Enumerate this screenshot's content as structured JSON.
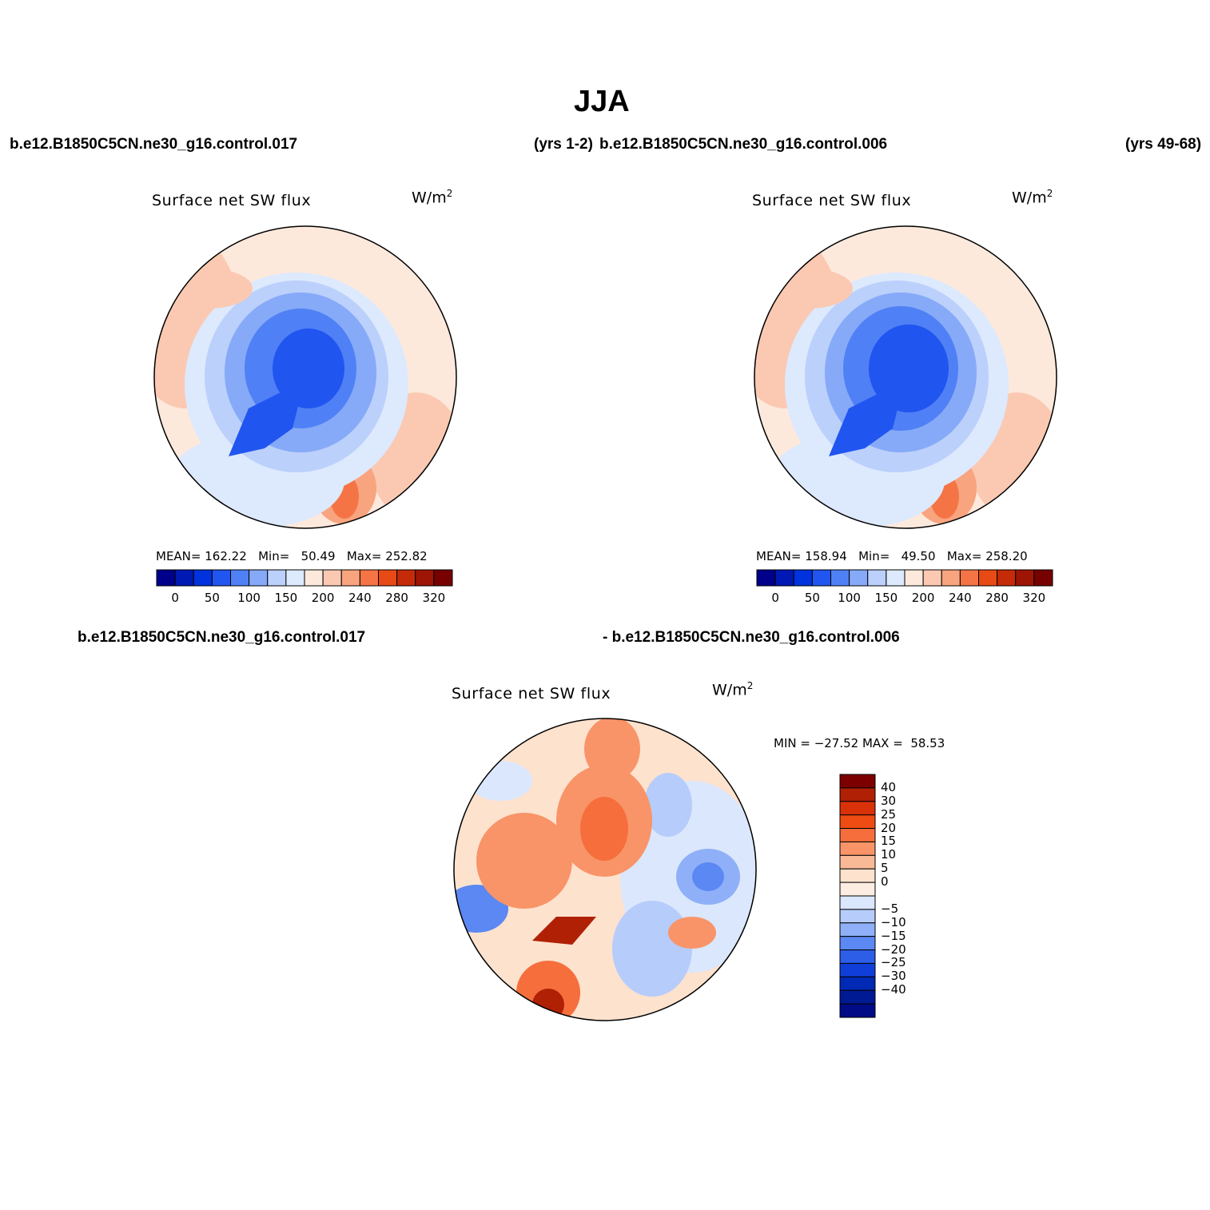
{
  "header": {
    "title": "JJA",
    "case_top_left": "b.e12.B1850C5CN.ne30_g16.control.017",
    "years_top_mid": "(yrs 1-2)",
    "case_top_right": "b.e12.B1850C5CN.ne30_g16.control.006",
    "years_top_right": "(yrs 49-68)",
    "case_diff_left": "b.e12.B1850C5CN.ne30_g16.control.017",
    "case_diff_right": "- b.e12.B1850C5CN.ne30_g16.control.006"
  },
  "panels": [
    {
      "variable": "Surface net SW flux",
      "units": "W/m",
      "units_sup": "2",
      "mean_label": "MEAN=",
      "mean": "162.22",
      "min_label": "Min=",
      "min": "50.49",
      "max_label": "Max=",
      "max": "252.82"
    },
    {
      "variable": "Surface net SW flux",
      "units": "W/m",
      "units_sup": "2",
      "mean_label": "MEAN=",
      "mean": "158.94",
      "min_label": "Min=",
      "min": "49.50",
      "max_label": "Max=",
      "max": "258.20"
    }
  ],
  "diff_panel": {
    "variable": "Surface net SW flux",
    "units": "W/m",
    "units_sup": "2",
    "minmax": "MIN = −27.52 MAX =  58.53"
  },
  "colorbar_abs": {
    "colors": [
      "#00008b",
      "#0019b4",
      "#0033dd",
      "#2155f0",
      "#4f80f5",
      "#86aaf8",
      "#bbd0fb",
      "#dde9fd",
      "#fde9dc",
      "#fbc9b2",
      "#f8a47f",
      "#f57446",
      "#e84a15",
      "#c52b08",
      "#9f1505",
      "#770000"
    ],
    "tick_labels": [
      "0",
      "50",
      "100",
      "150",
      "200",
      "240",
      "280",
      "320"
    ]
  },
  "colorbar_diff": {
    "colors_top_to_bottom": [
      "#7d0000",
      "#b02005",
      "#d93208",
      "#ef4c13",
      "#f56e3c",
      "#f89468",
      "#fab996",
      "#fde2ce",
      "#fdece2",
      "#dbe7fc",
      "#b6ccfb",
      "#8fb0f8",
      "#5b88f2",
      "#2c5ee8",
      "#0f3fd8",
      "#002ab5",
      "#001a93",
      "#000b85"
    ],
    "tick_labels": [
      "40",
      "30",
      "25",
      "20",
      "15",
      "10",
      "5",
      "0",
      "−5",
      "−10",
      "−15",
      "−20",
      "−25",
      "−30",
      "−40"
    ]
  }
}
